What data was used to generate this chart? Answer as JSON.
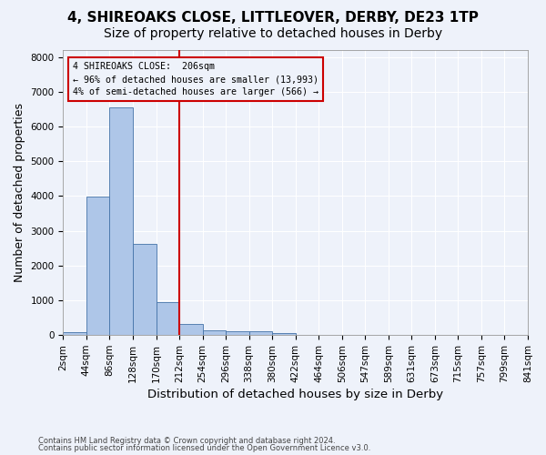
{
  "title_line1": "4, SHIREOAKS CLOSE, LITTLEOVER, DERBY, DE23 1TP",
  "title_line2": "Size of property relative to detached houses in Derby",
  "xlabel": "Distribution of detached houses by size in Derby",
  "ylabel": "Number of detached properties",
  "footnote1": "Contains HM Land Registry data © Crown copyright and database right 2024.",
  "footnote2": "Contains public sector information licensed under the Open Government Licence v3.0.",
  "bin_labels": [
    "2sqm",
    "44sqm",
    "86sqm",
    "128sqm",
    "170sqm",
    "212sqm",
    "254sqm",
    "296sqm",
    "338sqm",
    "380sqm",
    "422sqm",
    "464sqm",
    "506sqm",
    "547sqm",
    "589sqm",
    "631sqm",
    "673sqm",
    "715sqm",
    "757sqm",
    "799sqm",
    "841sqm"
  ],
  "bar_values": [
    80,
    3980,
    6560,
    2620,
    960,
    310,
    130,
    120,
    100,
    50,
    0,
    0,
    0,
    0,
    0,
    0,
    0,
    0,
    0,
    0
  ],
  "bar_color": "#aec6e8",
  "bar_edge_color": "#4472a8",
  "property_line_x": 5,
  "annotation_line1": "4 SHIREOAKS CLOSE:  206sqm",
  "annotation_line2": "← 96% of detached houses are smaller (13,993)",
  "annotation_line3": "4% of semi-detached houses are larger (566) →",
  "annotation_box_color": "#cc0000",
  "ylim": [
    0,
    8200
  ],
  "yticks": [
    0,
    1000,
    2000,
    3000,
    4000,
    5000,
    6000,
    7000,
    8000
  ],
  "background_color": "#eef2fa",
  "grid_color": "#ffffff",
  "title_fontsize": 11,
  "subtitle_fontsize": 10,
  "tick_fontsize": 7.5,
  "ylabel_fontsize": 9,
  "xlabel_fontsize": 9.5,
  "footnote_fontsize": 6
}
